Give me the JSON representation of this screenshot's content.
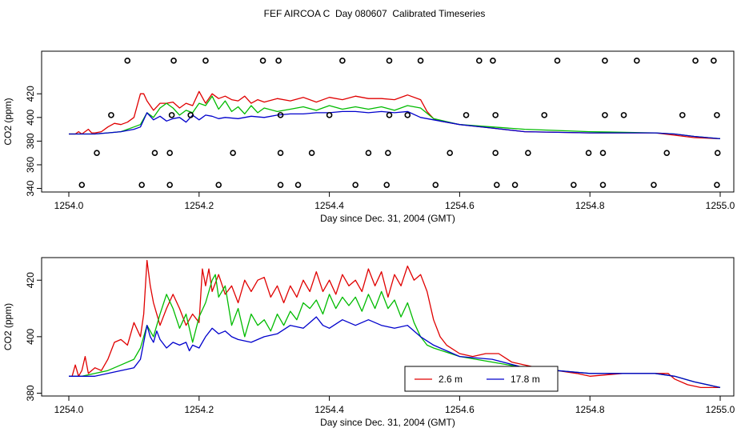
{
  "title": "FEF AIRCOA C  Day 080607  Calibrated Timeseries",
  "colors": {
    "red": "#e00000",
    "green": "#00bb00",
    "blue": "#0000cc",
    "frame": "#000000"
  },
  "chart_data": [
    {
      "type": "line",
      "panel": "top",
      "xlabel": "Day since Dec. 31, 2004 (GMT)",
      "ylabel": "CO2 (ppm)",
      "xlim": [
        1254.0,
        1255.0
      ],
      "ylim": [
        337,
        456
      ],
      "xticks": [
        "1254.0",
        "1254.2",
        "1254.4",
        "1254.6",
        "1254.8",
        "1255.0"
      ],
      "yticks": [
        "340",
        "360",
        "380",
        "400",
        "420"
      ],
      "ytick_values": [
        340,
        360,
        380,
        400,
        420
      ],
      "grid": false,
      "legend": "none",
      "marker_rows": [
        {
          "y": 448,
          "x": [
            1254.09,
            1254.161,
            1254.21,
            1254.298,
            1254.322,
            1254.42,
            1254.492,
            1254.54,
            1254.63,
            1254.651,
            1254.75,
            1254.823,
            1254.872,
            1254.962,
            1254.99
          ]
        },
        {
          "y": 402,
          "x": [
            1254.065,
            1254.158,
            1254.187,
            1254.325,
            1254.4,
            1254.492,
            1254.52,
            1254.61,
            1254.655,
            1254.73,
            1254.823,
            1254.852,
            1254.942,
            1254.995
          ]
        },
        {
          "y": 370,
          "x": [
            1254.043,
            1254.132,
            1254.155,
            1254.252,
            1254.325,
            1254.373,
            1254.46,
            1254.49,
            1254.585,
            1254.655,
            1254.705,
            1254.798,
            1254.82,
            1254.918,
            1254.996
          ]
        },
        {
          "y": 343,
          "x": [
            1254.02,
            1254.112,
            1254.155,
            1254.23,
            1254.325,
            1254.352,
            1254.44,
            1254.488,
            1254.563,
            1254.657,
            1254.685,
            1254.775,
            1254.82,
            1254.898,
            1254.995
          ]
        }
      ],
      "series": [
        {
          "color": "red",
          "x": [
            1254.0,
            1254.01,
            1254.015,
            1254.02,
            1254.03,
            1254.035,
            1254.04,
            1254.05,
            1254.06,
            1254.07,
            1254.08,
            1254.09,
            1254.1,
            1254.11,
            1254.115,
            1254.12,
            1254.13,
            1254.14,
            1254.15,
            1254.16,
            1254.17,
            1254.18,
            1254.19,
            1254.2,
            1254.21,
            1254.22,
            1254.23,
            1254.24,
            1254.25,
            1254.26,
            1254.27,
            1254.28,
            1254.29,
            1254.3,
            1254.32,
            1254.34,
            1254.36,
            1254.38,
            1254.4,
            1254.42,
            1254.44,
            1254.46,
            1254.48,
            1254.5,
            1254.52,
            1254.54,
            1254.55,
            1254.56,
            1254.57,
            1254.6,
            1254.65,
            1254.7,
            1254.8,
            1254.9,
            1254.93,
            1254.96,
            1255.0
          ],
          "y": [
            386,
            386,
            388,
            386,
            390,
            387,
            387,
            388,
            392,
            395,
            394,
            396,
            400,
            420,
            420,
            414,
            406,
            412,
            412,
            413,
            408,
            412,
            410,
            422,
            412,
            420,
            416,
            418,
            415,
            414,
            418,
            412,
            415,
            413,
            416,
            414,
            417,
            413,
            417,
            415,
            418,
            416,
            416,
            415,
            419,
            415,
            405,
            399,
            397,
            394,
            391,
            388,
            387,
            387,
            385,
            383,
            382
          ]
        },
        {
          "color": "green",
          "x": [
            1254.0,
            1254.02,
            1254.04,
            1254.06,
            1254.08,
            1254.1,
            1254.11,
            1254.12,
            1254.13,
            1254.14,
            1254.15,
            1254.16,
            1254.17,
            1254.18,
            1254.19,
            1254.2,
            1254.21,
            1254.22,
            1254.23,
            1254.24,
            1254.25,
            1254.26,
            1254.27,
            1254.28,
            1254.29,
            1254.3,
            1254.32,
            1254.34,
            1254.36,
            1254.38,
            1254.4,
            1254.42,
            1254.44,
            1254.46,
            1254.48,
            1254.5,
            1254.52,
            1254.54,
            1254.56,
            1254.6,
            1254.7,
            1254.8,
            1254.9,
            1254.93,
            1254.96,
            1255.0
          ],
          "y": [
            386,
            386,
            386,
            387,
            388,
            392,
            394,
            404,
            400,
            408,
            412,
            408,
            402,
            406,
            404,
            412,
            410,
            418,
            407,
            414,
            405,
            409,
            403,
            410,
            404,
            408,
            405,
            407,
            409,
            406,
            410,
            407,
            409,
            407,
            409,
            406,
            410,
            408,
            399,
            394,
            390,
            388,
            387,
            386,
            384,
            382
          ]
        },
        {
          "color": "blue",
          "x": [
            1254.0,
            1254.02,
            1254.04,
            1254.06,
            1254.08,
            1254.1,
            1254.11,
            1254.12,
            1254.13,
            1254.14,
            1254.15,
            1254.16,
            1254.17,
            1254.18,
            1254.19,
            1254.2,
            1254.21,
            1254.22,
            1254.23,
            1254.24,
            1254.26,
            1254.28,
            1254.3,
            1254.32,
            1254.34,
            1254.36,
            1254.38,
            1254.4,
            1254.42,
            1254.44,
            1254.46,
            1254.48,
            1254.5,
            1254.52,
            1254.54,
            1254.56,
            1254.6,
            1254.65,
            1254.7,
            1254.8,
            1254.9,
            1254.93,
            1254.96,
            1255.0
          ],
          "y": [
            386,
            386,
            386,
            387,
            388,
            390,
            392,
            404,
            398,
            401,
            397,
            399,
            400,
            396,
            402,
            398,
            402,
            401,
            399,
            400,
            399,
            401,
            400,
            402,
            403,
            403,
            404,
            404,
            405,
            405,
            404,
            405,
            404,
            405,
            400,
            398,
            394,
            391,
            388,
            387,
            387,
            386,
            384,
            382
          ]
        }
      ]
    },
    {
      "type": "line",
      "panel": "bottom",
      "xlabel": "Day since Dec. 31, 2004 (GMT)",
      "ylabel": "CO2 (ppm)",
      "xlim": [
        1254.0,
        1255.0
      ],
      "ylim": [
        379,
        428
      ],
      "xticks": [
        "1254.0",
        "1254.2",
        "1254.4",
        "1254.6",
        "1254.8",
        "1255.0"
      ],
      "yticks": [
        "380",
        "400",
        "420"
      ],
      "ytick_values": [
        380,
        400,
        420
      ],
      "grid": false,
      "legend": "bottom-center",
      "legend_entries": [
        {
          "label": "2.6 m",
          "color": "red"
        },
        {
          "label": "17.8 m",
          "color": "blue"
        }
      ],
      "series": [
        {
          "name": "2.6 m",
          "color": "red",
          "x": [
            1254.0,
            1254.005,
            1254.01,
            1254.015,
            1254.02,
            1254.025,
            1254.03,
            1254.035,
            1254.04,
            1254.05,
            1254.06,
            1254.07,
            1254.08,
            1254.09,
            1254.1,
            1254.11,
            1254.115,
            1254.12,
            1254.125,
            1254.13,
            1254.14,
            1254.15,
            1254.16,
            1254.17,
            1254.18,
            1254.19,
            1254.2,
            1254.205,
            1254.21,
            1254.215,
            1254.22,
            1254.23,
            1254.24,
            1254.25,
            1254.26,
            1254.27,
            1254.28,
            1254.29,
            1254.3,
            1254.31,
            1254.32,
            1254.33,
            1254.34,
            1254.35,
            1254.36,
            1254.37,
            1254.38,
            1254.39,
            1254.4,
            1254.41,
            1254.42,
            1254.43,
            1254.44,
            1254.45,
            1254.46,
            1254.47,
            1254.48,
            1254.49,
            1254.5,
            1254.51,
            1254.52,
            1254.53,
            1254.54,
            1254.55,
            1254.56,
            1254.57,
            1254.58,
            1254.6,
            1254.62,
            1254.64,
            1254.66,
            1254.68,
            1254.7,
            1254.72,
            1254.75,
            1254.78,
            1254.8,
            1254.85,
            1254.9,
            1254.92,
            1254.93,
            1254.95,
            1254.97,
            1255.0
          ],
          "y": [
            386,
            386,
            390,
            386,
            388,
            393,
            387,
            388,
            389,
            388,
            392,
            398,
            399,
            397,
            405,
            400,
            408,
            427,
            418,
            412,
            404,
            410,
            415,
            410,
            404,
            408,
            405,
            424,
            418,
            424,
            416,
            422,
            415,
            418,
            412,
            420,
            416,
            420,
            421,
            414,
            418,
            412,
            418,
            414,
            420,
            416,
            423,
            416,
            420,
            415,
            422,
            418,
            420,
            416,
            424,
            418,
            423,
            414,
            422,
            418,
            425,
            420,
            422,
            416,
            406,
            400,
            397,
            394,
            393,
            394,
            394,
            391,
            390,
            389,
            388,
            387,
            386,
            387,
            387,
            387,
            385,
            383,
            382,
            382
          ]
        },
        {
          "color": "green",
          "x": [
            1254.0,
            1254.02,
            1254.04,
            1254.06,
            1254.08,
            1254.1,
            1254.11,
            1254.12,
            1254.13,
            1254.14,
            1254.15,
            1254.16,
            1254.17,
            1254.18,
            1254.19,
            1254.2,
            1254.21,
            1254.22,
            1254.225,
            1254.23,
            1254.24,
            1254.25,
            1254.26,
            1254.27,
            1254.28,
            1254.29,
            1254.3,
            1254.31,
            1254.32,
            1254.33,
            1254.34,
            1254.35,
            1254.36,
            1254.37,
            1254.38,
            1254.39,
            1254.4,
            1254.41,
            1254.42,
            1254.43,
            1254.44,
            1254.45,
            1254.46,
            1254.47,
            1254.48,
            1254.49,
            1254.5,
            1254.51,
            1254.52,
            1254.53,
            1254.54,
            1254.55,
            1254.56,
            1254.6,
            1254.65,
            1254.7,
            1254.8,
            1254.9,
            1254.93,
            1254.96,
            1255.0
          ],
          "y": [
            386,
            386,
            387,
            388,
            390,
            392,
            396,
            404,
            400,
            408,
            415,
            410,
            403,
            408,
            398,
            407,
            412,
            420,
            422,
            414,
            418,
            404,
            410,
            400,
            408,
            404,
            406,
            402,
            408,
            404,
            409,
            406,
            412,
            410,
            413,
            408,
            415,
            410,
            414,
            411,
            414,
            409,
            415,
            410,
            416,
            410,
            413,
            407,
            412,
            405,
            400,
            397,
            396,
            393,
            391,
            389,
            387,
            387,
            386,
            384,
            382
          ]
        },
        {
          "name": "17.8 m",
          "color": "blue",
          "x": [
            1254.0,
            1254.02,
            1254.04,
            1254.06,
            1254.08,
            1254.1,
            1254.11,
            1254.12,
            1254.125,
            1254.13,
            1254.135,
            1254.14,
            1254.15,
            1254.16,
            1254.17,
            1254.18,
            1254.185,
            1254.19,
            1254.2,
            1254.21,
            1254.22,
            1254.23,
            1254.24,
            1254.25,
            1254.26,
            1254.28,
            1254.3,
            1254.32,
            1254.34,
            1254.36,
            1254.37,
            1254.38,
            1254.39,
            1254.4,
            1254.42,
            1254.44,
            1254.46,
            1254.48,
            1254.5,
            1254.52,
            1254.54,
            1254.56,
            1254.6,
            1254.65,
            1254.7,
            1254.8,
            1254.9,
            1254.93,
            1254.96,
            1255.0
          ],
          "y": [
            386,
            386,
            386,
            387,
            388,
            389,
            392,
            404,
            400,
            398,
            402,
            399,
            396,
            398,
            397,
            398,
            395,
            397,
            396,
            400,
            403,
            401,
            402,
            400,
            399,
            398,
            400,
            401,
            404,
            403,
            405,
            407,
            404,
            403,
            406,
            404,
            406,
            404,
            403,
            404,
            400,
            397,
            393,
            392,
            389,
            387,
            387,
            386,
            384,
            382
          ]
        }
      ]
    }
  ]
}
